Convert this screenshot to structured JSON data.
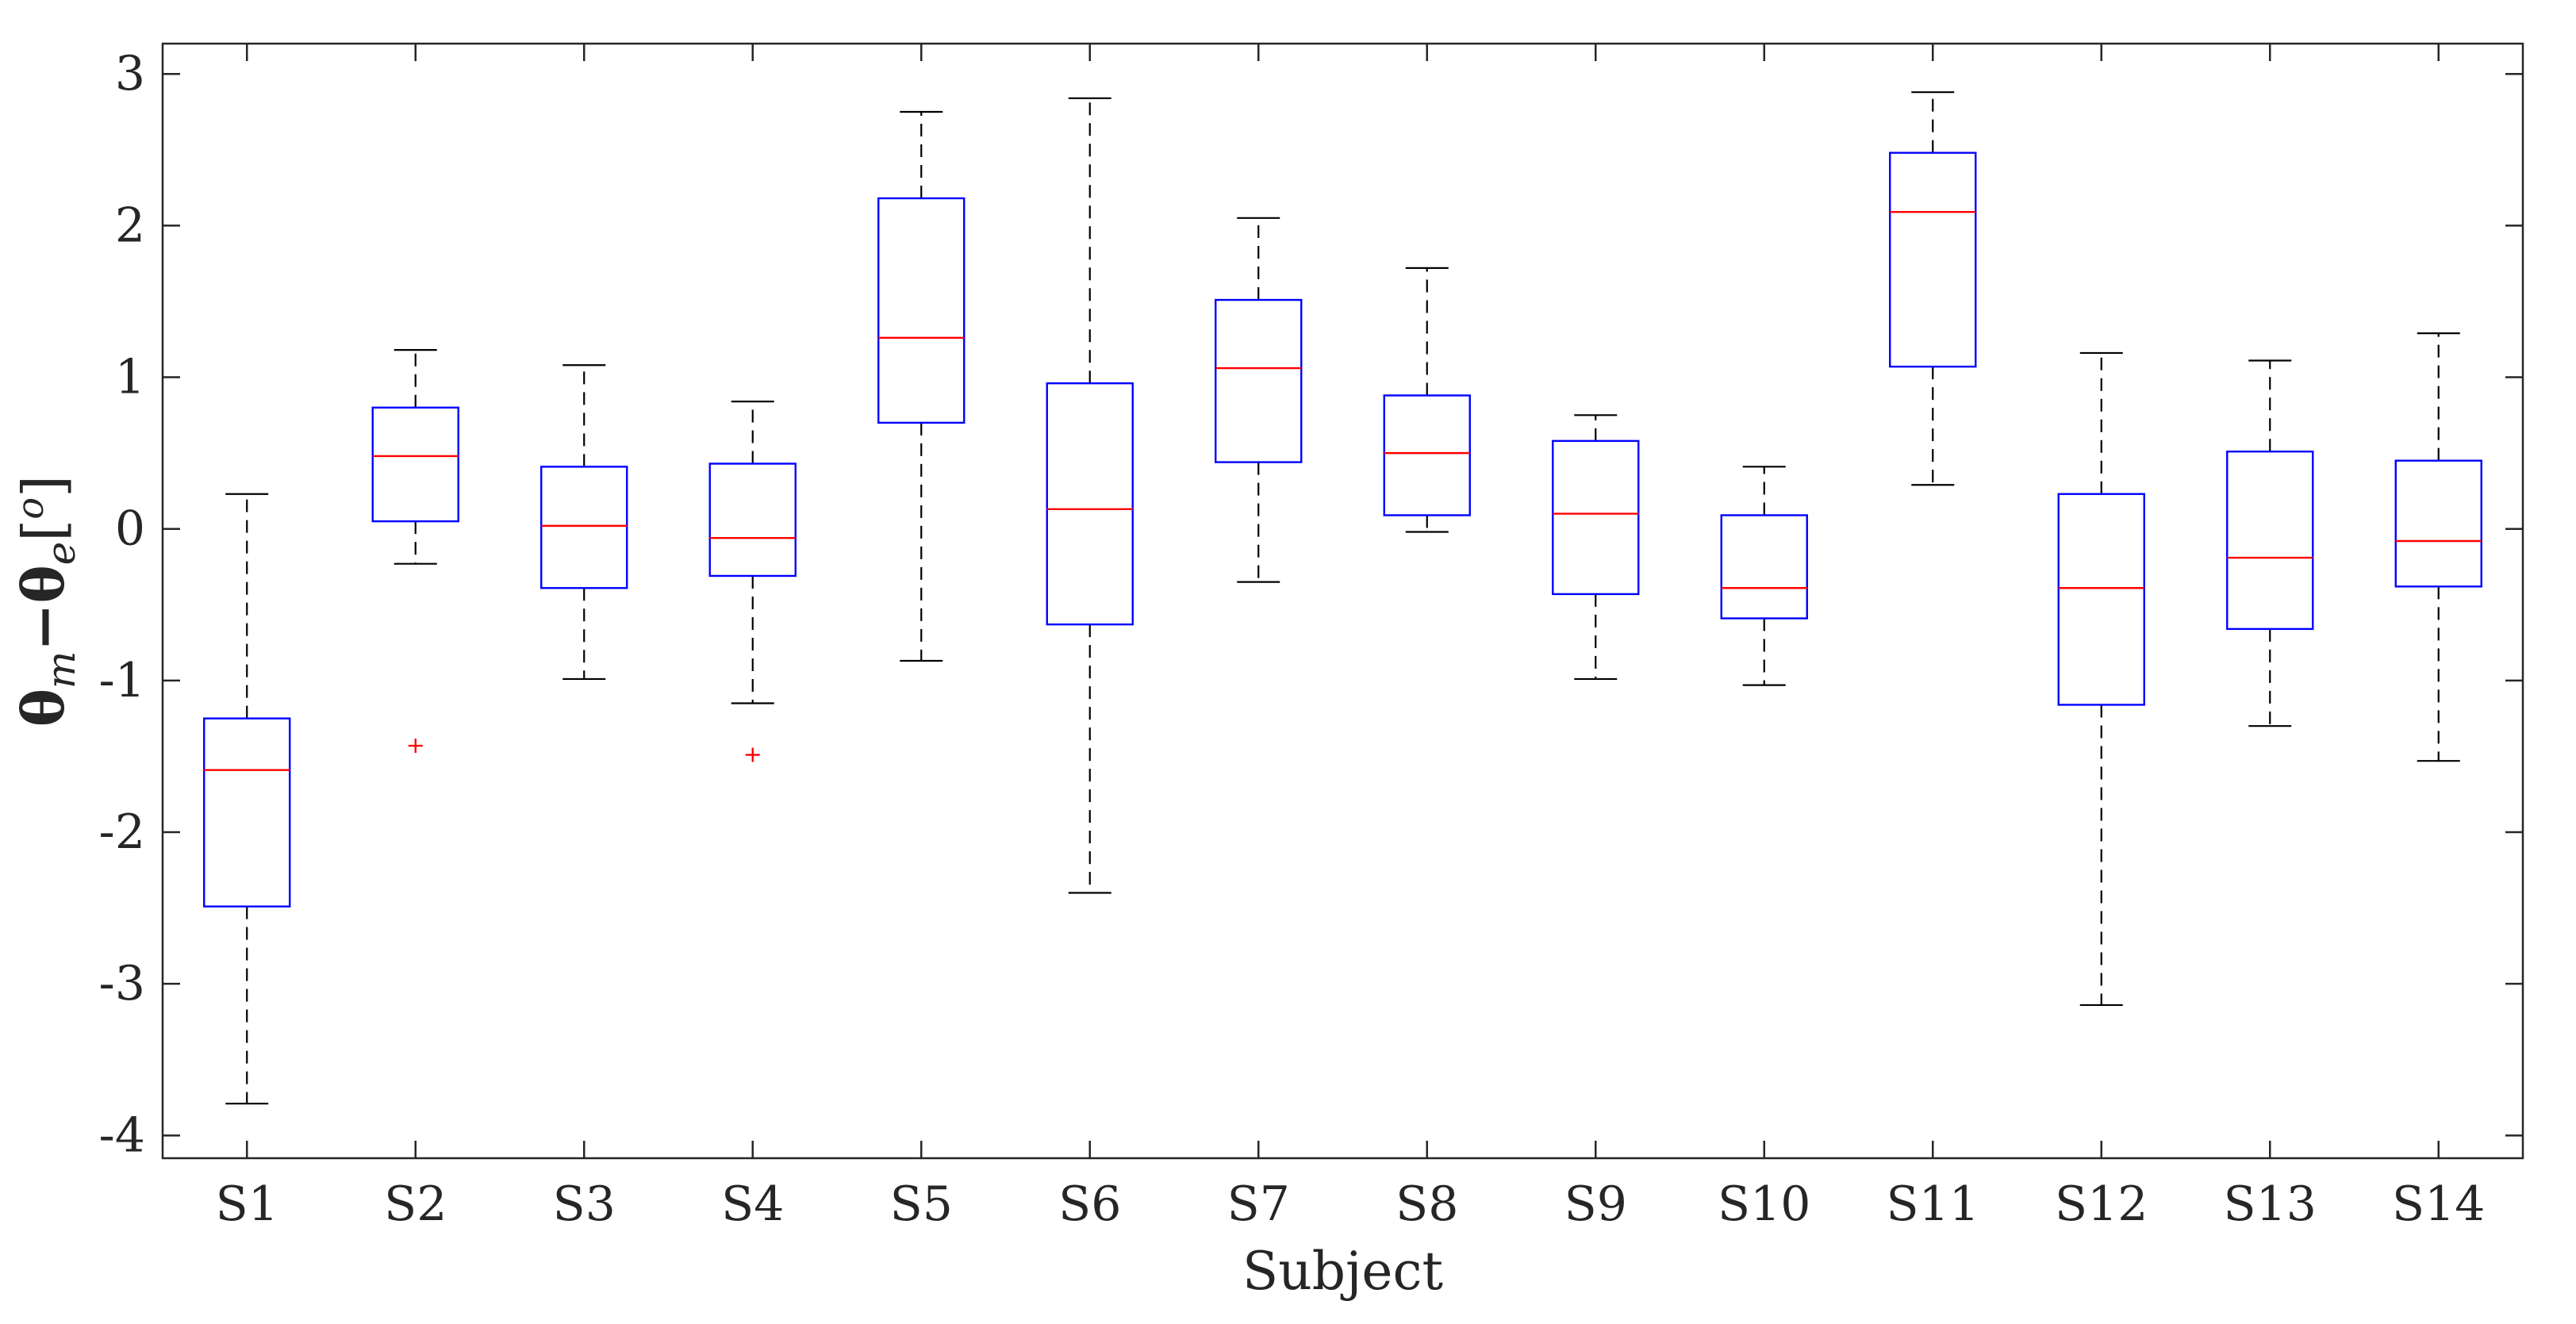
{
  "chart_data": {
    "type": "box",
    "xlabel": "Subject",
    "ylabel": "θm−θe[o]",
    "ylabel_parts": {
      "theta1": "θ",
      "sub1": "m",
      "minus": "−",
      "theta2": "θ",
      "sub2": "e",
      "open_bracket": "[",
      "degree": "o",
      "close_bracket": "]"
    },
    "ylim": [
      -4.15,
      3.2
    ],
    "yticks": [
      -4,
      -3,
      -2,
      -1,
      0,
      1,
      2,
      3
    ],
    "ytick_labels": [
      "-4",
      "-3",
      "-2",
      "-1",
      "0",
      "1",
      "2",
      "3"
    ],
    "categories": [
      "S1",
      "S2",
      "S3",
      "S4",
      "S5",
      "S6",
      "S7",
      "S8",
      "S9",
      "S10",
      "S11",
      "S12",
      "S13",
      "S14"
    ],
    "series": [
      {
        "name": "S1",
        "whisker_low": -3.79,
        "q1": -2.49,
        "median": -1.59,
        "q3": -1.25,
        "whisker_high": 0.23,
        "outliers": []
      },
      {
        "name": "S2",
        "whisker_low": -0.23,
        "q1": 0.05,
        "median": 0.48,
        "q3": 0.8,
        "whisker_high": 1.18,
        "outliers": [
          -1.43
        ]
      },
      {
        "name": "S3",
        "whisker_low": -0.99,
        "q1": -0.39,
        "median": 0.02,
        "q3": 0.41,
        "whisker_high": 1.08,
        "outliers": []
      },
      {
        "name": "S4",
        "whisker_low": -1.15,
        "q1": -0.31,
        "median": -0.06,
        "q3": 0.43,
        "whisker_high": 0.84,
        "outliers": [
          -1.49
        ]
      },
      {
        "name": "S5",
        "whisker_low": -0.87,
        "q1": 0.7,
        "median": 1.26,
        "q3": 2.18,
        "whisker_high": 2.75,
        "outliers": []
      },
      {
        "name": "S6",
        "whisker_low": -2.4,
        "q1": -0.63,
        "median": 0.13,
        "q3": 0.96,
        "whisker_high": 2.84,
        "outliers": []
      },
      {
        "name": "S7",
        "whisker_low": -0.35,
        "q1": 0.44,
        "median": 1.06,
        "q3": 1.51,
        "whisker_high": 2.05,
        "outliers": []
      },
      {
        "name": "S8",
        "whisker_low": -0.02,
        "q1": 0.09,
        "median": 0.5,
        "q3": 0.88,
        "whisker_high": 1.72,
        "outliers": []
      },
      {
        "name": "S9",
        "whisker_low": -0.99,
        "q1": -0.43,
        "median": 0.1,
        "q3": 0.58,
        "whisker_high": 0.75,
        "outliers": []
      },
      {
        "name": "S10",
        "whisker_low": -1.03,
        "q1": -0.59,
        "median": -0.39,
        "q3": 0.09,
        "whisker_high": 0.41,
        "outliers": []
      },
      {
        "name": "S11",
        "whisker_low": 0.29,
        "q1": 1.07,
        "median": 2.09,
        "q3": 2.48,
        "whisker_high": 2.88,
        "outliers": []
      },
      {
        "name": "S12",
        "whisker_low": -3.14,
        "q1": -1.16,
        "median": -0.39,
        "q3": 0.23,
        "whisker_high": 1.16,
        "outliers": []
      },
      {
        "name": "S13",
        "whisker_low": -1.3,
        "q1": -0.66,
        "median": -0.19,
        "q3": 0.51,
        "whisker_high": 1.11,
        "outliers": []
      },
      {
        "name": "S14",
        "whisker_low": -1.53,
        "q1": -0.38,
        "median": -0.08,
        "q3": 0.45,
        "whisker_high": 1.29,
        "outliers": []
      }
    ],
    "grid": false,
    "legend": "none",
    "colors": {
      "box": "#0000ff",
      "median": "#ff0000",
      "outlier": "#ff0000",
      "whisker": "#000000",
      "axis": "#262626"
    }
  }
}
